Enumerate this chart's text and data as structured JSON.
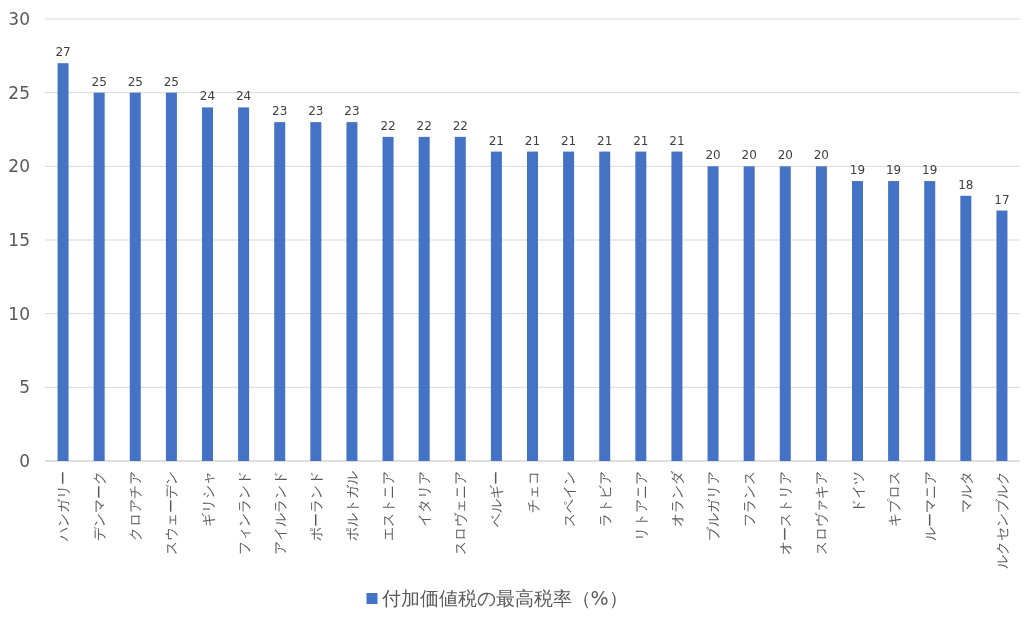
{
  "chart_data": {
    "type": "bar",
    "categories": [
      "ハンガリー",
      "デンマーク",
      "クロアチア",
      "スウェーデン",
      "ギリシャ",
      "フィンランド",
      "アイルランド",
      "ポーランド",
      "ポルトガル",
      "エストニア",
      "イタリア",
      "スロヴェニア",
      "ベルギー",
      "チェコ",
      "スペイン",
      "ラトビア",
      "リトアニア",
      "オランダ",
      "ブルガリア",
      "フランス",
      "オーストリア",
      "スロヴァキア",
      "ドイツ",
      "キプロス",
      "ルーマニア",
      "マルタ",
      "ルクセンブルク"
    ],
    "series": [
      {
        "name": "付加価値税の最高税率（%）",
        "color": "#4472c4",
        "values": [
          27,
          25,
          25,
          25,
          24,
          24,
          23,
          23,
          23,
          22,
          22,
          22,
          21,
          21,
          21,
          21,
          21,
          21,
          20,
          20,
          20,
          20,
          19,
          19,
          19,
          18,
          17
        ]
      }
    ],
    "ylim": [
      0,
      30
    ],
    "yticks": [
      0,
      5,
      10,
      15,
      20,
      25,
      30
    ],
    "grid": "y",
    "data_labels": true,
    "legend": "bottom"
  }
}
